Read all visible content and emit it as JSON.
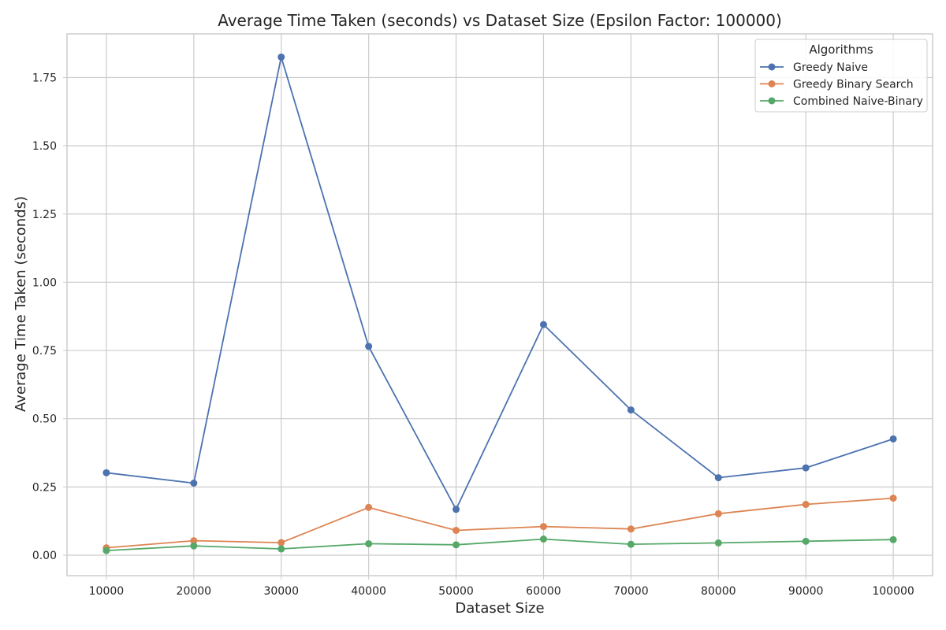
{
  "chart_data": {
    "type": "line",
    "title": "Average Time Taken (seconds) vs Dataset Size (Epsilon Factor: 100000)",
    "xlabel": "Dataset Size",
    "ylabel": "Average Time Taken (seconds)",
    "x": [
      10000,
      20000,
      30000,
      40000,
      50000,
      60000,
      70000,
      80000,
      90000,
      100000
    ],
    "x_ticks": [
      "10000",
      "20000",
      "30000",
      "40000",
      "50000",
      "60000",
      "70000",
      "80000",
      "90000",
      "100000"
    ],
    "y_ticks": [
      "0.00",
      "0.25",
      "0.50",
      "0.75",
      "1.00",
      "1.25",
      "1.50",
      "1.75"
    ],
    "xlim": [
      5500,
      104500
    ],
    "ylim": [
      -0.075,
      1.91
    ],
    "grid": true,
    "legend": {
      "title": "Algorithms",
      "placement": "top-right"
    },
    "series": [
      {
        "name": "Greedy Naive",
        "color": "#4c72b0",
        "values": [
          0.302,
          0.264,
          1.825,
          0.765,
          0.168,
          0.845,
          0.532,
          0.284,
          0.32,
          0.426
        ]
      },
      {
        "name": "Greedy Binary Search",
        "color": "#dd8452",
        "values": [
          0.027,
          0.053,
          0.046,
          0.175,
          0.091,
          0.105,
          0.096,
          0.152,
          0.186,
          0.209
        ]
      },
      {
        "name": "Combined Naive-Binary",
        "color": "#55a868",
        "values": [
          0.017,
          0.034,
          0.023,
          0.042,
          0.038,
          0.059,
          0.04,
          0.045,
          0.051,
          0.057
        ]
      }
    ]
  }
}
